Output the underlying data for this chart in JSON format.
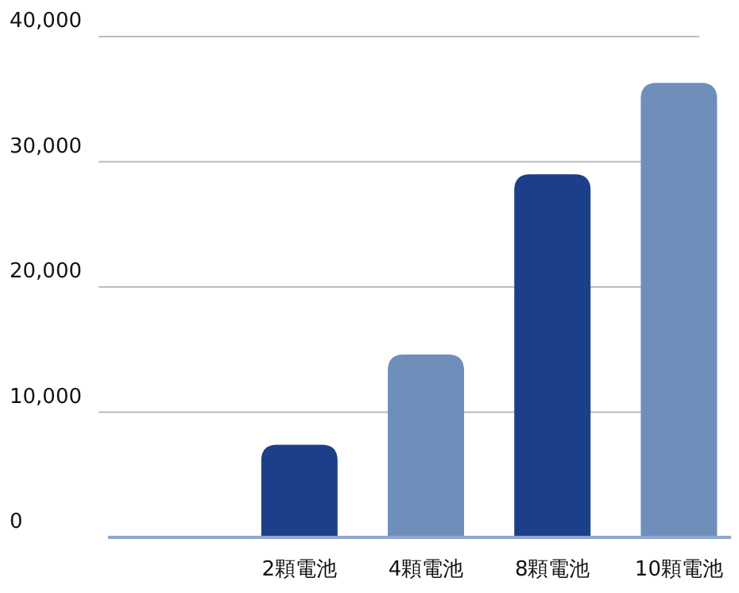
{
  "chart_data": {
    "type": "bar",
    "categories": [
      null,
      "2顆電池",
      "4顆電池",
      "8顆電池",
      "10顆電池"
    ],
    "values": [
      null,
      7400,
      14600,
      29000,
      36300
    ],
    "colors": [
      null,
      "#1c3f8a",
      "#6f8fba",
      "#1c3f8a",
      "#6f8fba"
    ],
    "ylim": [
      0,
      40000
    ],
    "yticks": [
      {
        "value": 0,
        "label": "0"
      },
      {
        "value": 10000,
        "label": "10,000"
      },
      {
        "value": 20000,
        "label": "20,000"
      },
      {
        "value": 30000,
        "label": "30,000"
      },
      {
        "value": 40000,
        "label": "40,000"
      }
    ],
    "grid": "y"
  }
}
